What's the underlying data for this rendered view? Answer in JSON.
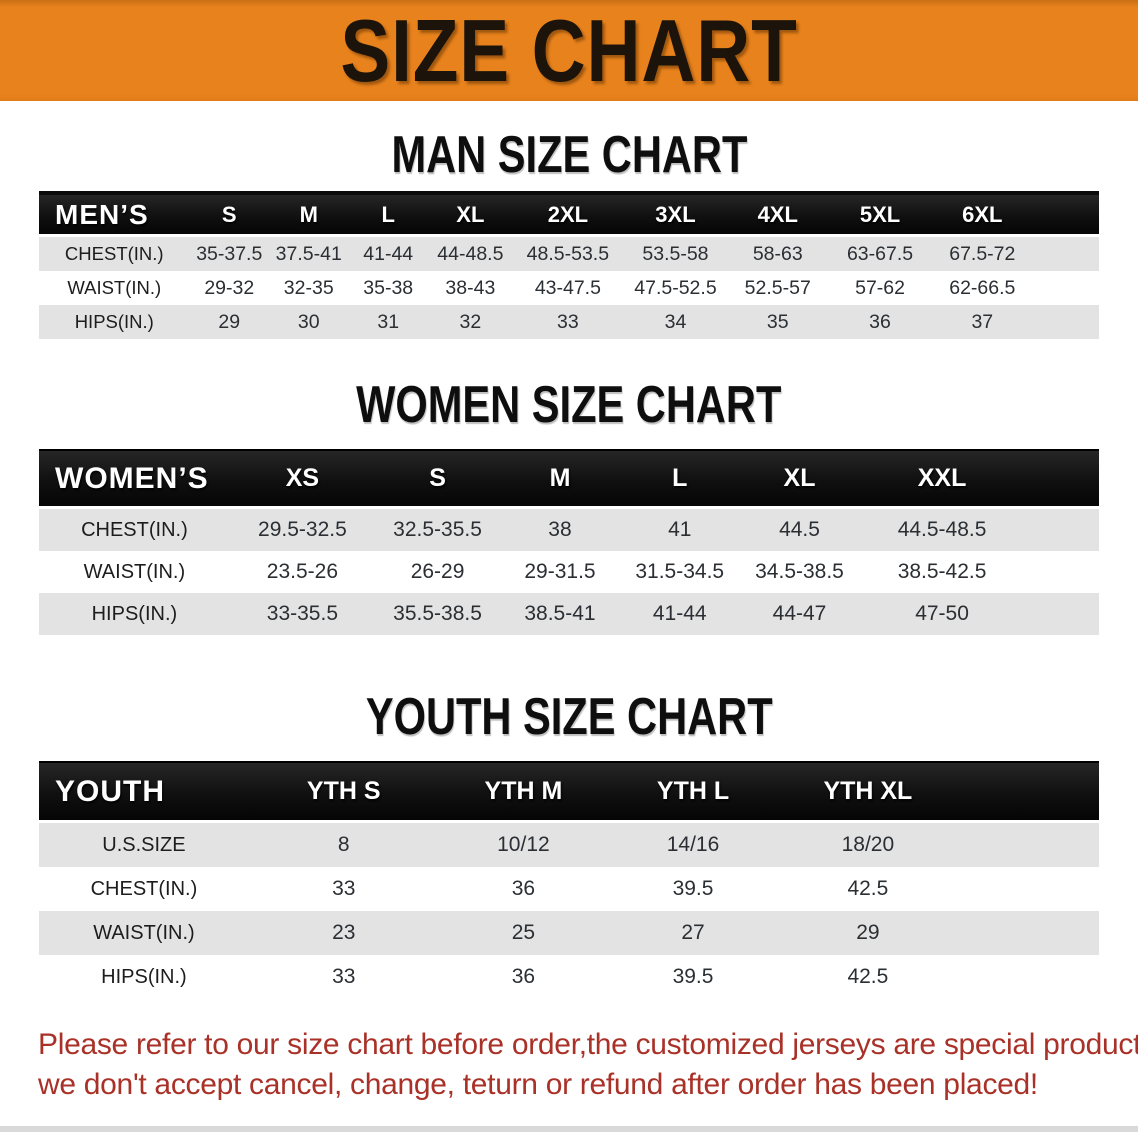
{
  "banner": {
    "title": "SIZE CHART"
  },
  "sections": {
    "men": {
      "heading": "MAN SIZE CHART",
      "group_label": "MEN’S",
      "columns": [
        "S",
        "M",
        "L",
        "XL",
        "2XL",
        "3XL",
        "4XL",
        "5XL",
        "6XL"
      ],
      "rows": [
        {
          "label": "CHEST(IN.)",
          "values": [
            "35-37.5",
            "37.5-41",
            "41-44",
            "44-48.5",
            "48.5-53.5",
            "53.5-58",
            "58-63",
            "63-67.5",
            "67.5-72"
          ]
        },
        {
          "label": "WAIST(IN.)",
          "values": [
            "29-32",
            "32-35",
            "35-38",
            "38-43",
            "43-47.5",
            "47.5-52.5",
            "52.5-57",
            "57-62",
            "62-66.5"
          ]
        },
        {
          "label": "HIPS(IN.)",
          "values": [
            "29",
            "30",
            "31",
            "32",
            "33",
            "34",
            "35",
            "36",
            "37"
          ]
        }
      ],
      "row_shading": [
        "gray",
        "white",
        "gray"
      ]
    },
    "women": {
      "heading": "WOMEN SIZE CHART",
      "group_label": "WOMEN’S",
      "columns": [
        "XS",
        "S",
        "M",
        "L",
        "XL",
        "XXL"
      ],
      "rows": [
        {
          "label": "CHEST(IN.)",
          "values": [
            "29.5-32.5",
            "32.5-35.5",
            "38",
            "41",
            "44.5",
            "44.5-48.5"
          ]
        },
        {
          "label": "WAIST(IN.)",
          "values": [
            "23.5-26",
            "26-29",
            "29-31.5",
            "31.5-34.5",
            "34.5-38.5",
            "38.5-42.5"
          ]
        },
        {
          "label": "HIPS(IN.)",
          "values": [
            "33-35.5",
            "35.5-38.5",
            "38.5-41",
            "41-44",
            "44-47",
            "47-50"
          ]
        }
      ],
      "row_shading": [
        "gray",
        "white",
        "gray"
      ]
    },
    "youth": {
      "heading": "YOUTH SIZE CHART",
      "group_label": "YOUTH",
      "columns": [
        "YTH S",
        "YTH M",
        "YTH L",
        "YTH XL"
      ],
      "rows": [
        {
          "label": "U.S.SIZE",
          "values": [
            "8",
            "10/12",
            "14/16",
            "18/20"
          ]
        },
        {
          "label": "CHEST(IN.)",
          "values": [
            "33",
            "36",
            "39.5",
            "42.5"
          ]
        },
        {
          "label": "WAIST(IN.)",
          "values": [
            "23",
            "25",
            "27",
            "29"
          ]
        },
        {
          "label": "HIPS(IN.)",
          "values": [
            "33",
            "36",
            "39.5",
            "42.5"
          ]
        }
      ],
      "row_shading": [
        "gray",
        "white",
        "gray",
        "white"
      ]
    }
  },
  "footer": {
    "line1": "Please refer to our size chart before order,the customized jerseys are special products,",
    "line2": "we don't accept cancel, change, teturn or refund after order has been placed!"
  },
  "colors": {
    "banner_orange": "#e8821c",
    "header_bar_black": "#101010",
    "row_gray": "#e3e3e3",
    "disclaimer_red": "#a93128"
  }
}
